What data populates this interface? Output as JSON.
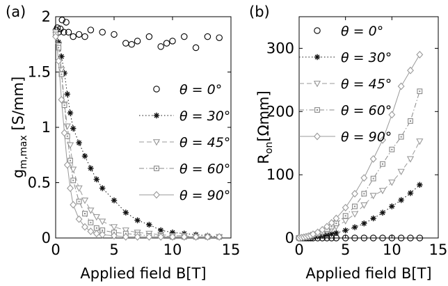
{
  "chart_data": [
    {
      "panel_label": "(a)",
      "type": "scatter",
      "xlabel": "Applied field B[T]",
      "ylabel_main": "g",
      "ylabel_sub": "m,max",
      "ylabel_unit": " [S/mm]",
      "xlim": [
        0,
        15
      ],
      "ylim": [
        0,
        2
      ],
      "xticks": [
        0,
        5,
        10,
        15
      ],
      "yticks": [
        0,
        0.5,
        1,
        1.5,
        2
      ],
      "ytick_labels": [
        "0",
        "0.5",
        "1",
        "1.5",
        "2"
      ],
      "legend_position": "right",
      "series": [
        {
          "name": "θ = 0°",
          "theta": "0",
          "marker": "circle",
          "line": "none",
          "x": [
            0.05,
            0.15,
            0.25,
            0.4,
            0.55,
            0.7,
            0.9,
            1.1,
            1.5,
            2,
            2.5,
            3,
            4,
            5,
            6,
            6.5,
            7,
            8,
            9,
            9.5,
            10,
            11,
            12,
            13,
            14
          ],
          "y": [
            1.88,
            1.9,
            1.86,
            1.89,
            1.97,
            1.86,
            1.95,
            1.86,
            1.82,
            1.84,
            1.82,
            1.88,
            1.86,
            1.84,
            1.76,
            1.75,
            1.78,
            1.82,
            1.73,
            1.76,
            1.78,
            1.82,
            1.72,
            1.82,
            1.81
          ]
        },
        {
          "name": "θ = 30°",
          "theta": "30",
          "marker": "asterisk",
          "line": "dotted",
          "x": [
            0,
            0.25,
            0.5,
            0.75,
            1,
            1.25,
            1.5,
            2,
            2.5,
            3,
            3.5,
            4,
            5,
            6,
            7,
            8,
            9,
            10,
            11,
            12,
            13,
            14
          ],
          "y": [
            1.86,
            1.77,
            1.64,
            1.49,
            1.3,
            1.13,
            0.99,
            0.86,
            0.74,
            0.63,
            0.53,
            0.45,
            0.34,
            0.23,
            0.16,
            0.12,
            0.07,
            0.05,
            0.04,
            0.03,
            0.02,
            0.01
          ]
        },
        {
          "name": "θ = 45°",
          "theta": "45",
          "marker": "triangle-down",
          "line": "dashed",
          "x": [
            0,
            0.25,
            0.5,
            0.75,
            1,
            1.25,
            1.5,
            2,
            2.5,
            3,
            3.5,
            4,
            5,
            6,
            7,
            8,
            9,
            10,
            11,
            12,
            13,
            14
          ],
          "y": [
            1.86,
            1.74,
            1.52,
            1.21,
            1.01,
            0.84,
            0.62,
            0.45,
            0.34,
            0.25,
            0.19,
            0.15,
            0.1,
            0.07,
            0.05,
            0.04,
            0.03,
            0.02,
            0.02,
            0.01,
            0.01,
            0.01
          ]
        },
        {
          "name": "θ = 60°",
          "theta": "60",
          "marker": "square",
          "line": "dashdot",
          "x": [
            0,
            0.25,
            0.5,
            0.75,
            1,
            1.25,
            1.5,
            2,
            2.5,
            3,
            3.5,
            4,
            5,
            6,
            7,
            8,
            9,
            10,
            11,
            12,
            13,
            14
          ],
          "y": [
            1.84,
            1.72,
            1.48,
            1.2,
            0.92,
            0.7,
            0.52,
            0.33,
            0.22,
            0.14,
            0.09,
            0.07,
            0.05,
            0.04,
            0.03,
            0.02,
            0.02,
            0.01,
            0.01,
            0.01,
            0.01,
            0.01
          ]
        },
        {
          "name": "θ = 90°",
          "theta": "90",
          "marker": "diamond",
          "line": "solid",
          "x": [
            0,
            0.25,
            0.5,
            0.75,
            1,
            1.25,
            1.5,
            2,
            2.5,
            3,
            3.5,
            4,
            5,
            6,
            7,
            8,
            9,
            10,
            11,
            12,
            13,
            14
          ],
          "y": [
            1.82,
            1.6,
            1.25,
            0.95,
            0.66,
            0.45,
            0.3,
            0.17,
            0.1,
            0.06,
            0.04,
            0.03,
            0.02,
            0.01,
            0.01,
            0.01,
            0.01,
            0.01,
            0.01,
            0.01,
            0.01,
            0.01
          ]
        }
      ]
    },
    {
      "panel_label": "(b)",
      "type": "scatter",
      "xlabel": "Applied field B[T]",
      "ylabel_main": "R",
      "ylabel_sub": "on",
      "ylabel_unit": "[Ωmm]",
      "xlim": [
        0,
        15
      ],
      "ylim": [
        0,
        350
      ],
      "xticks": [
        0,
        5,
        10,
        15
      ],
      "yticks": [
        0,
        100,
        200,
        300
      ],
      "ytick_labels": [
        "0",
        "100",
        "200",
        "300"
      ],
      "legend_position": "top-left",
      "series": [
        {
          "name": "θ = 0°",
          "theta": "0",
          "marker": "circle",
          "line": "none",
          "x": [
            0,
            0.25,
            0.5,
            0.75,
            1,
            1.25,
            1.5,
            2,
            2.5,
            3,
            3.5,
            4,
            5,
            6,
            7,
            8,
            9,
            10,
            11,
            12,
            13
          ],
          "y": [
            0,
            0,
            0,
            0,
            0,
            0,
            0,
            0,
            0,
            0,
            0,
            0,
            0,
            0,
            0,
            0,
            0,
            0,
            0,
            0,
            0
          ]
        },
        {
          "name": "θ = 30°",
          "theta": "30",
          "marker": "asterisk",
          "line": "dotted",
          "x": [
            0,
            0.25,
            0.5,
            0.75,
            1,
            1.25,
            1.5,
            2,
            2.5,
            3,
            3.5,
            4,
            5,
            6,
            7,
            8,
            9,
            10,
            11,
            12,
            13
          ],
          "y": [
            0,
            0.2,
            0.4,
            0.7,
            1,
            1.3,
            1.7,
            2.5,
            3.5,
            5,
            6.5,
            8,
            12,
            17,
            23,
            31,
            40,
            50,
            60,
            71,
            84
          ]
        },
        {
          "name": "θ = 45°",
          "theta": "45",
          "marker": "triangle-down",
          "line": "dashed",
          "x": [
            0,
            0.25,
            0.5,
            0.75,
            1,
            1.25,
            1.5,
            2,
            2.5,
            3,
            3.5,
            4,
            5,
            6,
            7,
            8,
            9,
            10,
            11,
            12,
            13
          ],
          "y": [
            0,
            0.3,
            0.7,
            1.3,
            2,
            3,
            4,
            6,
            8,
            11,
            14,
            18,
            27,
            38,
            52,
            67,
            75,
            88,
            105,
            125,
            153
          ]
        },
        {
          "name": "θ = 60°",
          "theta": "60",
          "marker": "square",
          "line": "dashdot",
          "x": [
            0,
            0.25,
            0.5,
            0.75,
            1,
            1.25,
            1.5,
            2,
            2.5,
            3,
            3.5,
            4,
            5,
            6,
            7,
            8,
            9,
            10,
            11,
            12,
            13
          ],
          "y": [
            0,
            0.5,
            1,
            1.7,
            2.5,
            3.5,
            5,
            7,
            10,
            14,
            18,
            23,
            35,
            50,
            70,
            94,
            117,
            140,
            160,
            185,
            232
          ]
        },
        {
          "name": "θ = 90°",
          "theta": "90",
          "marker": "diamond",
          "line": "solid",
          "x": [
            0,
            0.25,
            0.5,
            0.75,
            1,
            1.25,
            1.5,
            2,
            2.5,
            3,
            3.5,
            4,
            5,
            6,
            7,
            8,
            9,
            10,
            11,
            12,
            13
          ],
          "y": [
            0,
            0.5,
            1.2,
            2,
            3,
            4,
            6,
            9,
            13,
            18,
            24,
            31,
            48,
            70,
            95,
            125,
            155,
            195,
            240,
            265,
            290
          ]
        }
      ]
    }
  ]
}
